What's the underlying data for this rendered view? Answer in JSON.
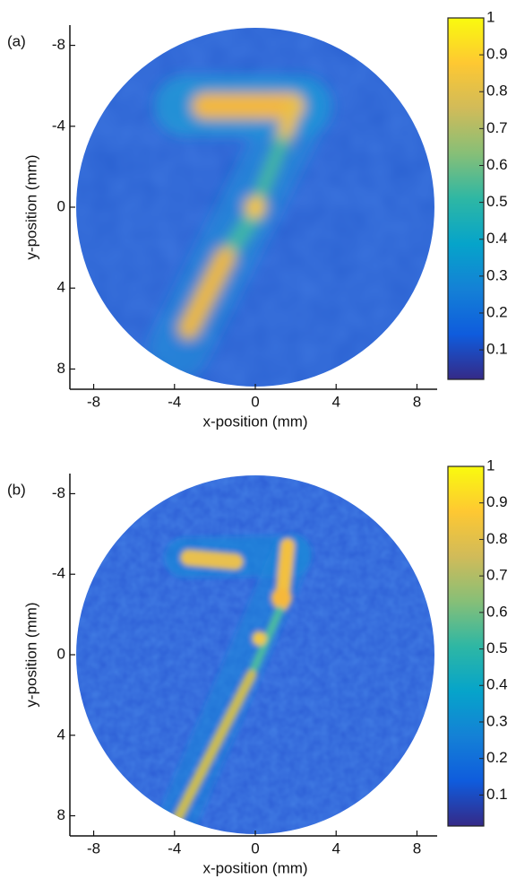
{
  "chart_data": [
    {
      "type": "heatmap",
      "panel_label": "(a)",
      "xlabel": "x-position (mm)",
      "ylabel": "y-position (mm)",
      "xlim": [
        -9,
        9
      ],
      "xticks": [
        -8,
        -4,
        0,
        4,
        8
      ],
      "ylim": [
        9,
        -9
      ],
      "yticks": [
        -8,
        -4,
        0,
        4,
        8
      ],
      "colormap": "parula",
      "clim": [
        0.02,
        1
      ],
      "cticks": [
        0.1,
        0.2,
        0.3,
        0.4,
        0.5,
        0.6,
        0.7,
        0.8,
        0.9,
        1
      ]
    },
    {
      "type": "heatmap",
      "panel_label": "(b)",
      "xlabel": "x-position (mm)",
      "ylabel": "y-position (mm)",
      "xlim": [
        -9,
        9
      ],
      "xticks": [
        -8,
        -4,
        0,
        4,
        8
      ],
      "ylim": [
        9,
        -9
      ],
      "yticks": [
        -8,
        -4,
        0,
        4,
        8
      ],
      "colormap": "parula",
      "clim": [
        0.015,
        1
      ],
      "cticks": [
        0.1,
        0.2,
        0.3,
        0.4,
        0.5,
        0.6,
        0.7,
        0.8,
        0.9,
        1
      ]
    }
  ]
}
